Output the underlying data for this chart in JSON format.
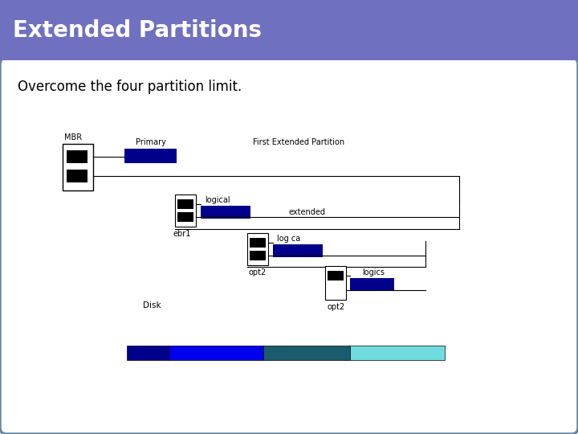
{
  "title": "Extended Partitions",
  "subtitle": "Overcome the four partition limit.",
  "title_bg": "#7070c0",
  "title_color": "#ffffff",
  "slide_bg": "#ffffff",
  "border_color": "#6888a0",
  "dark_blue": "#00008b",
  "bright_blue": "#0000ee",
  "teal": "#1a5c6e",
  "cyan": "#70dce0",
  "black": "#000000",
  "white": "#ffffff",
  "labels": {
    "mbr": "MBR",
    "primary": "Primary",
    "first_extended": "First Extended Partition",
    "logical": "logical",
    "extended": "extended",
    "logical2": "log ca",
    "ebr1": "ebr1",
    "opt2_1": "opt2",
    "logics": "logics",
    "opt2_2": "opt2",
    "disk": "Disk"
  }
}
